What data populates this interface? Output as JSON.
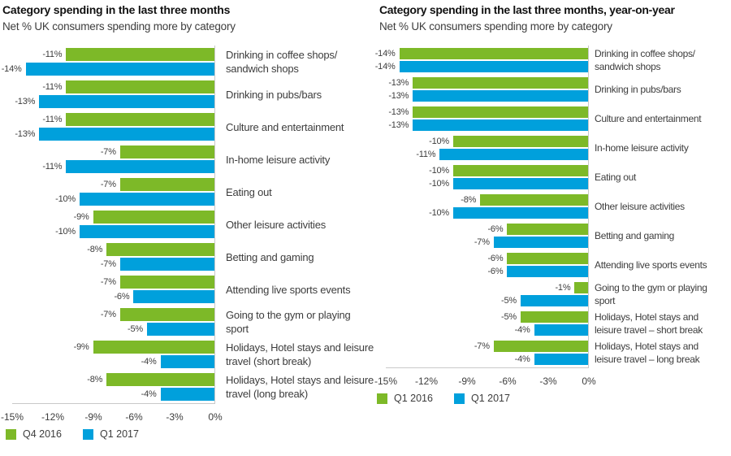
{
  "page": {
    "background": "#ffffff"
  },
  "palette": {
    "green": "#7DB928",
    "blue": "#00A0DC",
    "axis_line": "#c9c9c9",
    "title_text": "#111111",
    "body_text": "#3d3d3d"
  },
  "chart_data": [
    {
      "type": "bar",
      "orientation": "horizontal",
      "title": "Category spending in the last three months",
      "subtitle": "Net % UK consumers spending more by category",
      "categories": [
        "Drinking in coffee shops/ sandwich shops",
        "Drinking in pubs/bars",
        "Culture and entertainment",
        "In-home leisure activity",
        "Eating out",
        "Other leisure activities",
        "Betting and gaming",
        "Attending live sports events",
        "Going to the gym or playing sport",
        "Holidays, Hotel stays and leisure travel (short break)",
        "Holidays, Hotel stays and leisure travel (long break)"
      ],
      "series": [
        {
          "name": "Q4 2016",
          "color": "#7DB928",
          "values": [
            -11,
            -11,
            -11,
            -7,
            -7,
            -9,
            -8,
            -7,
            -7,
            -9,
            -8
          ]
        },
        {
          "name": "Q1 2017",
          "color": "#00A0DC",
          "values": [
            -14,
            -13,
            -13,
            -11,
            -10,
            -10,
            -7,
            -6,
            -5,
            -4,
            -4
          ]
        }
      ],
      "xlim": [
        -15,
        0
      ],
      "x_ticks": [
        "-15%",
        "-12%",
        "-9%",
        "-6%",
        "-3%",
        "0%"
      ],
      "value_suffix": "%",
      "grid": false,
      "legend_position": "bottom"
    },
    {
      "type": "bar",
      "orientation": "horizontal",
      "title": "Category spending in the last three months, year-on-year",
      "subtitle": "Net % UK consumers spending more by category",
      "categories": [
        "Drinking in coffee shops/ sandwich shops",
        "Drinking in pubs/bars",
        "Culture and entertainment",
        "In-home leisure activity",
        "Eating out",
        "Other leisure activities",
        "Betting and gaming",
        "Attending live sports events",
        "Going to the gym or playing sport",
        "Holidays, Hotel stays and leisure travel – short break",
        "Holidays, Hotel stays and leisure travel – long break"
      ],
      "series": [
        {
          "name": "Q1 2016",
          "color": "#7DB928",
          "values": [
            -14,
            -13,
            -13,
            -10,
            -10,
            -8,
            -6,
            -6,
            -1,
            -5,
            -7
          ]
        },
        {
          "name": "Q1 2017",
          "color": "#00A0DC",
          "values": [
            -14,
            -13,
            -13,
            -11,
            -10,
            -10,
            -7,
            -6,
            -5,
            -4,
            -4
          ]
        }
      ],
      "xlim": [
        -15,
        0
      ],
      "x_ticks": [
        "-15%",
        "-12%",
        "-9%",
        "-6%",
        "-3%",
        "0%"
      ],
      "value_suffix": "%",
      "grid": false,
      "legend_position": "bottom"
    }
  ]
}
